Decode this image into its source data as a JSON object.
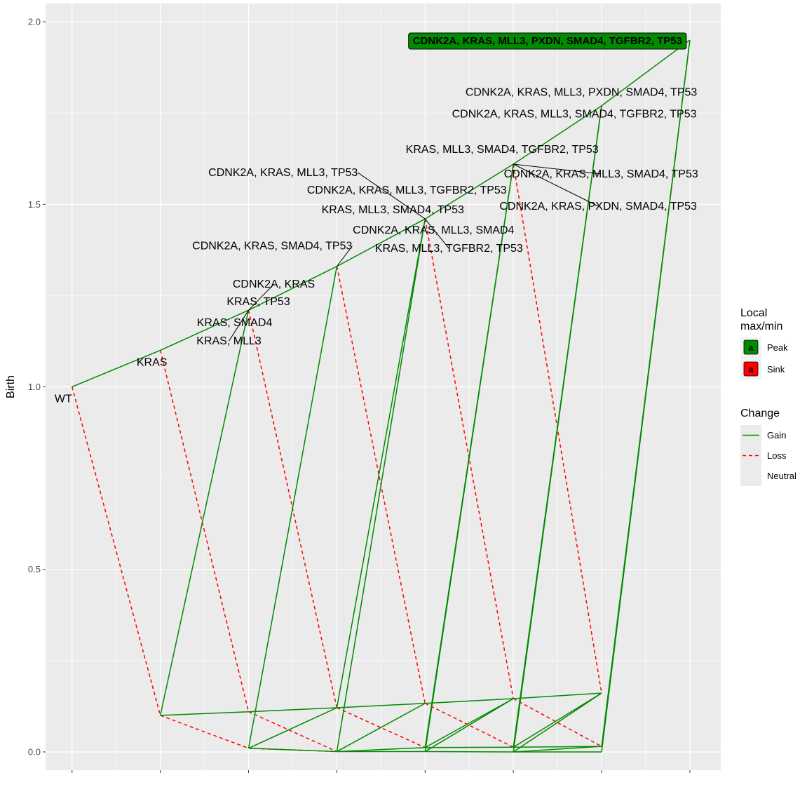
{
  "chart_data": {
    "type": "line",
    "ylabel": "Birth",
    "xlabel": "",
    "ylim": [
      -0.05,
      2.05
    ],
    "yticks": [
      0.0,
      0.5,
      1.0,
      1.5,
      2.0
    ],
    "ytick_labels": [
      "0.0",
      "0.5",
      "1.0",
      "1.5",
      "2.0"
    ],
    "xlim": [
      -0.3,
      7.35
    ],
    "grid": true,
    "nodes": {
      "wt": {
        "x": 0,
        "y": 1.0
      },
      "s1a": {
        "x": 1,
        "y": 1.1
      },
      "s1b": {
        "x": 1,
        "y": 0.1
      },
      "s2a": {
        "x": 2,
        "y": 1.21
      },
      "s2b": {
        "x": 2,
        "y": 0.11
      },
      "s2c": {
        "x": 2,
        "y": 0.01
      },
      "s3a": {
        "x": 3,
        "y": 1.33
      },
      "s3b": {
        "x": 3,
        "y": 0.121
      },
      "s3c": {
        "x": 3,
        "y": 0.001
      },
      "s4a": {
        "x": 4,
        "y": 1.46
      },
      "s4b": {
        "x": 4,
        "y": 0.133
      },
      "s4c": {
        "x": 4,
        "y": 0.012
      },
      "s4d": {
        "x": 4,
        "y": 0.001
      },
      "s5a": {
        "x": 5,
        "y": 1.61
      },
      "s5b": {
        "x": 5,
        "y": 0.146
      },
      "s5c": {
        "x": 5,
        "y": 0.013
      },
      "s5d": {
        "x": 5,
        "y": 0.0
      },
      "s6a": {
        "x": 6,
        "y": 1.77
      },
      "s6b": {
        "x": 6,
        "y": 0.161
      },
      "s6c": {
        "x": 6,
        "y": 0.015
      },
      "s6d": {
        "x": 6,
        "y": 0.0
      },
      "s7a": {
        "x": 7,
        "y": 1.95
      }
    },
    "edges": [
      {
        "from": "wt",
        "to": "s1a",
        "change": "Gain"
      },
      {
        "from": "s1a",
        "to": "s2a",
        "change": "Gain"
      },
      {
        "from": "s2a",
        "to": "s3a",
        "change": "Gain"
      },
      {
        "from": "s3a",
        "to": "s4a",
        "change": "Gain"
      },
      {
        "from": "s4a",
        "to": "s5a",
        "change": "Gain"
      },
      {
        "from": "s5a",
        "to": "s6a",
        "change": "Gain"
      },
      {
        "from": "s6a",
        "to": "s7a",
        "change": "Gain"
      },
      {
        "from": "s1b",
        "to": "s2a",
        "change": "Gain"
      },
      {
        "from": "s2c",
        "to": "s3a",
        "change": "Gain"
      },
      {
        "from": "s3c",
        "to": "s4a",
        "change": "Gain"
      },
      {
        "from": "s3b",
        "to": "s4a",
        "change": "Gain"
      },
      {
        "from": "s4d",
        "to": "s5a",
        "change": "Gain"
      },
      {
        "from": "s4c",
        "to": "s5a",
        "change": "Gain"
      },
      {
        "from": "s5d",
        "to": "s6a",
        "change": "Gain"
      },
      {
        "from": "s5c",
        "to": "s6a",
        "change": "Gain"
      },
      {
        "from": "s6d",
        "to": "s7a",
        "change": "Gain"
      },
      {
        "from": "s6c",
        "to": "s7a",
        "change": "Gain"
      },
      {
        "from": "s1b",
        "to": "s2b",
        "change": "Gain"
      },
      {
        "from": "s2b",
        "to": "s3b",
        "change": "Gain"
      },
      {
        "from": "s3b",
        "to": "s4b",
        "change": "Gain"
      },
      {
        "from": "s4b",
        "to": "s5b",
        "change": "Gain"
      },
      {
        "from": "s5b",
        "to": "s6b",
        "change": "Gain"
      },
      {
        "from": "s2c",
        "to": "s3b",
        "change": "Gain"
      },
      {
        "from": "s3c",
        "to": "s4b",
        "change": "Gain"
      },
      {
        "from": "s4c",
        "to": "s5b",
        "change": "Gain"
      },
      {
        "from": "s4d",
        "to": "s5b",
        "change": "Gain"
      },
      {
        "from": "s5c",
        "to": "s6b",
        "change": "Gain"
      },
      {
        "from": "s5d",
        "to": "s6b",
        "change": "Gain"
      },
      {
        "from": "s2c",
        "to": "s3c",
        "change": "Gain"
      },
      {
        "from": "s3c",
        "to": "s4c",
        "change": "Gain"
      },
      {
        "from": "s3c",
        "to": "s4d",
        "change": "Gain"
      },
      {
        "from": "s4c",
        "to": "s5c",
        "change": "Gain"
      },
      {
        "from": "s4d",
        "to": "s5d",
        "change": "Gain"
      },
      {
        "from": "s5c",
        "to": "s6c",
        "change": "Gain"
      },
      {
        "from": "s5d",
        "to": "s6d",
        "change": "Gain"
      },
      {
        "from": "s5d",
        "to": "s6c",
        "change": "Gain"
      },
      {
        "from": "wt",
        "to": "s1b",
        "change": "Loss"
      },
      {
        "from": "s1a",
        "to": "s2b",
        "change": "Loss"
      },
      {
        "from": "s2a",
        "to": "s3b",
        "change": "Loss"
      },
      {
        "from": "s3a",
        "to": "s4b",
        "change": "Loss"
      },
      {
        "from": "s4a",
        "to": "s5b",
        "change": "Loss"
      },
      {
        "from": "s5a",
        "to": "s6b",
        "change": "Loss"
      },
      {
        "from": "s1b",
        "to": "s2c",
        "change": "Loss"
      },
      {
        "from": "s2b",
        "to": "s3c",
        "change": "Loss"
      },
      {
        "from": "s3b",
        "to": "s4c",
        "change": "Loss"
      },
      {
        "from": "s4b",
        "to": "s5c",
        "change": "Loss"
      },
      {
        "from": "s5b",
        "to": "s6c",
        "change": "Loss"
      },
      {
        "from": "s2c",
        "to": "s3c",
        "change": "Loss"
      }
    ],
    "labels": [
      {
        "text": "WT",
        "node": "wt",
        "anchor": "end",
        "dx": 0,
        "dy": 22
      },
      {
        "text": "KRAS",
        "node": "s1a",
        "anchor": "middle",
        "dx": -12,
        "dy": 22
      },
      {
        "text": "CDNK2A, KRAS",
        "node": "s2a",
        "anchor": "middle",
        "dx": 36,
        "dy": -32,
        "leader": true
      },
      {
        "text": "KRAS, TP53",
        "node": "s2a",
        "anchor": "middle",
        "dx": 14,
        "dy": -7
      },
      {
        "text": "KRAS, SMAD4",
        "node": "s2a",
        "anchor": "middle",
        "dx": -20,
        "dy": 23
      },
      {
        "text": "KRAS, MLL3",
        "node": "s2a",
        "anchor": "middle",
        "dx": -28,
        "dy": 49,
        "leader": true
      },
      {
        "text": "CDNK2A, KRAS, MLL3, TP53",
        "node": "s4a",
        "anchor": "end",
        "dx": -96,
        "dy": -61,
        "leader": true
      },
      {
        "text": "CDNK2A, KRAS, MLL3, TGFBR2, TP53",
        "node": "s4a",
        "anchor": "middle",
        "dx": -26,
        "dy": -36
      },
      {
        "text": "KRAS, MLL3, SMAD4, TP53",
        "node": "s4a",
        "anchor": "middle",
        "dx": -46,
        "dy": -8
      },
      {
        "text": "CDNK2A, KRAS, MLL3, SMAD4",
        "node": "s4a",
        "anchor": "middle",
        "dx": 12,
        "dy": 21
      },
      {
        "text": "KRAS, MLL3, TGFBR2, TP53",
        "node": "s4a",
        "anchor": "middle",
        "dx": 34,
        "dy": 47,
        "leader": true
      },
      {
        "text": "CDNK2A, KRAS, SMAD4, TP53",
        "node": "s3a",
        "anchor": "end",
        "dx": 22,
        "dy": -24,
        "leader": true
      },
      {
        "text": "KRAS, MLL3, SMAD4, TGFBR2, TP53",
        "node": "s5a",
        "anchor": "middle",
        "dx": -16,
        "dy": -16
      },
      {
        "text": "CDNK2A, KRAS, MLL3, SMAD4, TP53",
        "node": "s5a",
        "anchor": "middle",
        "dx": 125,
        "dy": 19,
        "leader": true
      },
      {
        "text": "CDNK2A, KRAS, PXDN, SMAD4, TP53",
        "node": "s5a",
        "anchor": "middle",
        "dx": 121,
        "dy": 65,
        "leader": true
      },
      {
        "text": "CDNK2A, KRAS, MLL3, PXDN, SMAD4, TP53",
        "node": "s6a",
        "anchor": "middle",
        "dx": -29,
        "dy": -14
      },
      {
        "text": "CDNK2A, KRAS, MLL3, SMAD4, TGFBR2, TP53",
        "node": "s6a",
        "anchor": "middle",
        "dx": -39,
        "dy": 17
      }
    ],
    "peak_labels": [
      {
        "text": "CDNK2A, KRAS, MLL3, PXDN, SMAD4, TGFBR2, TP53",
        "node": "s7a"
      }
    ],
    "colors": {
      "gain": "#008B00",
      "loss": "#FF0000",
      "panel": "#EBEBEB",
      "grid": "#FFFFFF",
      "peak": "#008B00",
      "sink": "#FF0000",
      "label_line": "#000000"
    }
  },
  "legend": {
    "title_line1": "Local",
    "title_line2": "max/min",
    "key_letter": "a",
    "items": [
      {
        "label": "Peak",
        "color": "#008B00"
      },
      {
        "label": "Sink",
        "color": "#FF0000"
      }
    ],
    "change_title": "Change",
    "change_items": [
      {
        "label": "Gain",
        "style": "solid",
        "color": "#008B00"
      },
      {
        "label": "Loss",
        "style": "dashed",
        "color": "#FF0000"
      },
      {
        "label": "Neutral",
        "style": "none",
        "color": ""
      }
    ]
  }
}
